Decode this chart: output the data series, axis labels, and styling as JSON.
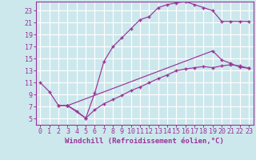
{
  "background_color": "#cce8ec",
  "line_color": "#993399",
  "grid_color": "#ffffff",
  "xlabel": "Windchill (Refroidissement éolien,°C)",
  "xlabel_fontsize": 6.5,
  "tick_fontsize": 6,
  "xlim": [
    -0.5,
    23.5
  ],
  "ylim": [
    4,
    24.5
  ],
  "yticks": [
    5,
    7,
    9,
    11,
    13,
    15,
    17,
    19,
    21,
    23
  ],
  "xticks": [
    0,
    1,
    2,
    3,
    4,
    5,
    6,
    7,
    8,
    9,
    10,
    11,
    12,
    13,
    14,
    15,
    16,
    17,
    18,
    19,
    20,
    21,
    22,
    23
  ],
  "line1_x": [
    0,
    1,
    2,
    3,
    4,
    5,
    6,
    7,
    8,
    9,
    10,
    11,
    12,
    13,
    14,
    15,
    16,
    17,
    18,
    19,
    20,
    21,
    22,
    23
  ],
  "line1_y": [
    11,
    9.5,
    7.2,
    7.2,
    6.3,
    5.1,
    9.3,
    14.5,
    17.0,
    18.5,
    20.0,
    21.5,
    22.0,
    23.5,
    24.0,
    24.3,
    24.5,
    24.0,
    23.5,
    23.0,
    21.2,
    21.2,
    21.2,
    21.2
  ],
  "line2_x": [
    2,
    3,
    19,
    20,
    21,
    22,
    23
  ],
  "line2_y": [
    7.2,
    7.2,
    16.3,
    14.8,
    14.2,
    13.6,
    13.4
  ],
  "line3_x": [
    3,
    5,
    6,
    7,
    8,
    9,
    10,
    11,
    12,
    13,
    14,
    15,
    16,
    17,
    18,
    19,
    20,
    21,
    22,
    23
  ],
  "line3_y": [
    7.2,
    5.1,
    6.5,
    7.5,
    8.2,
    8.9,
    9.7,
    10.3,
    11.0,
    11.7,
    12.3,
    13.0,
    13.3,
    13.5,
    13.7,
    13.5,
    13.8,
    14.0,
    13.8,
    13.4
  ]
}
